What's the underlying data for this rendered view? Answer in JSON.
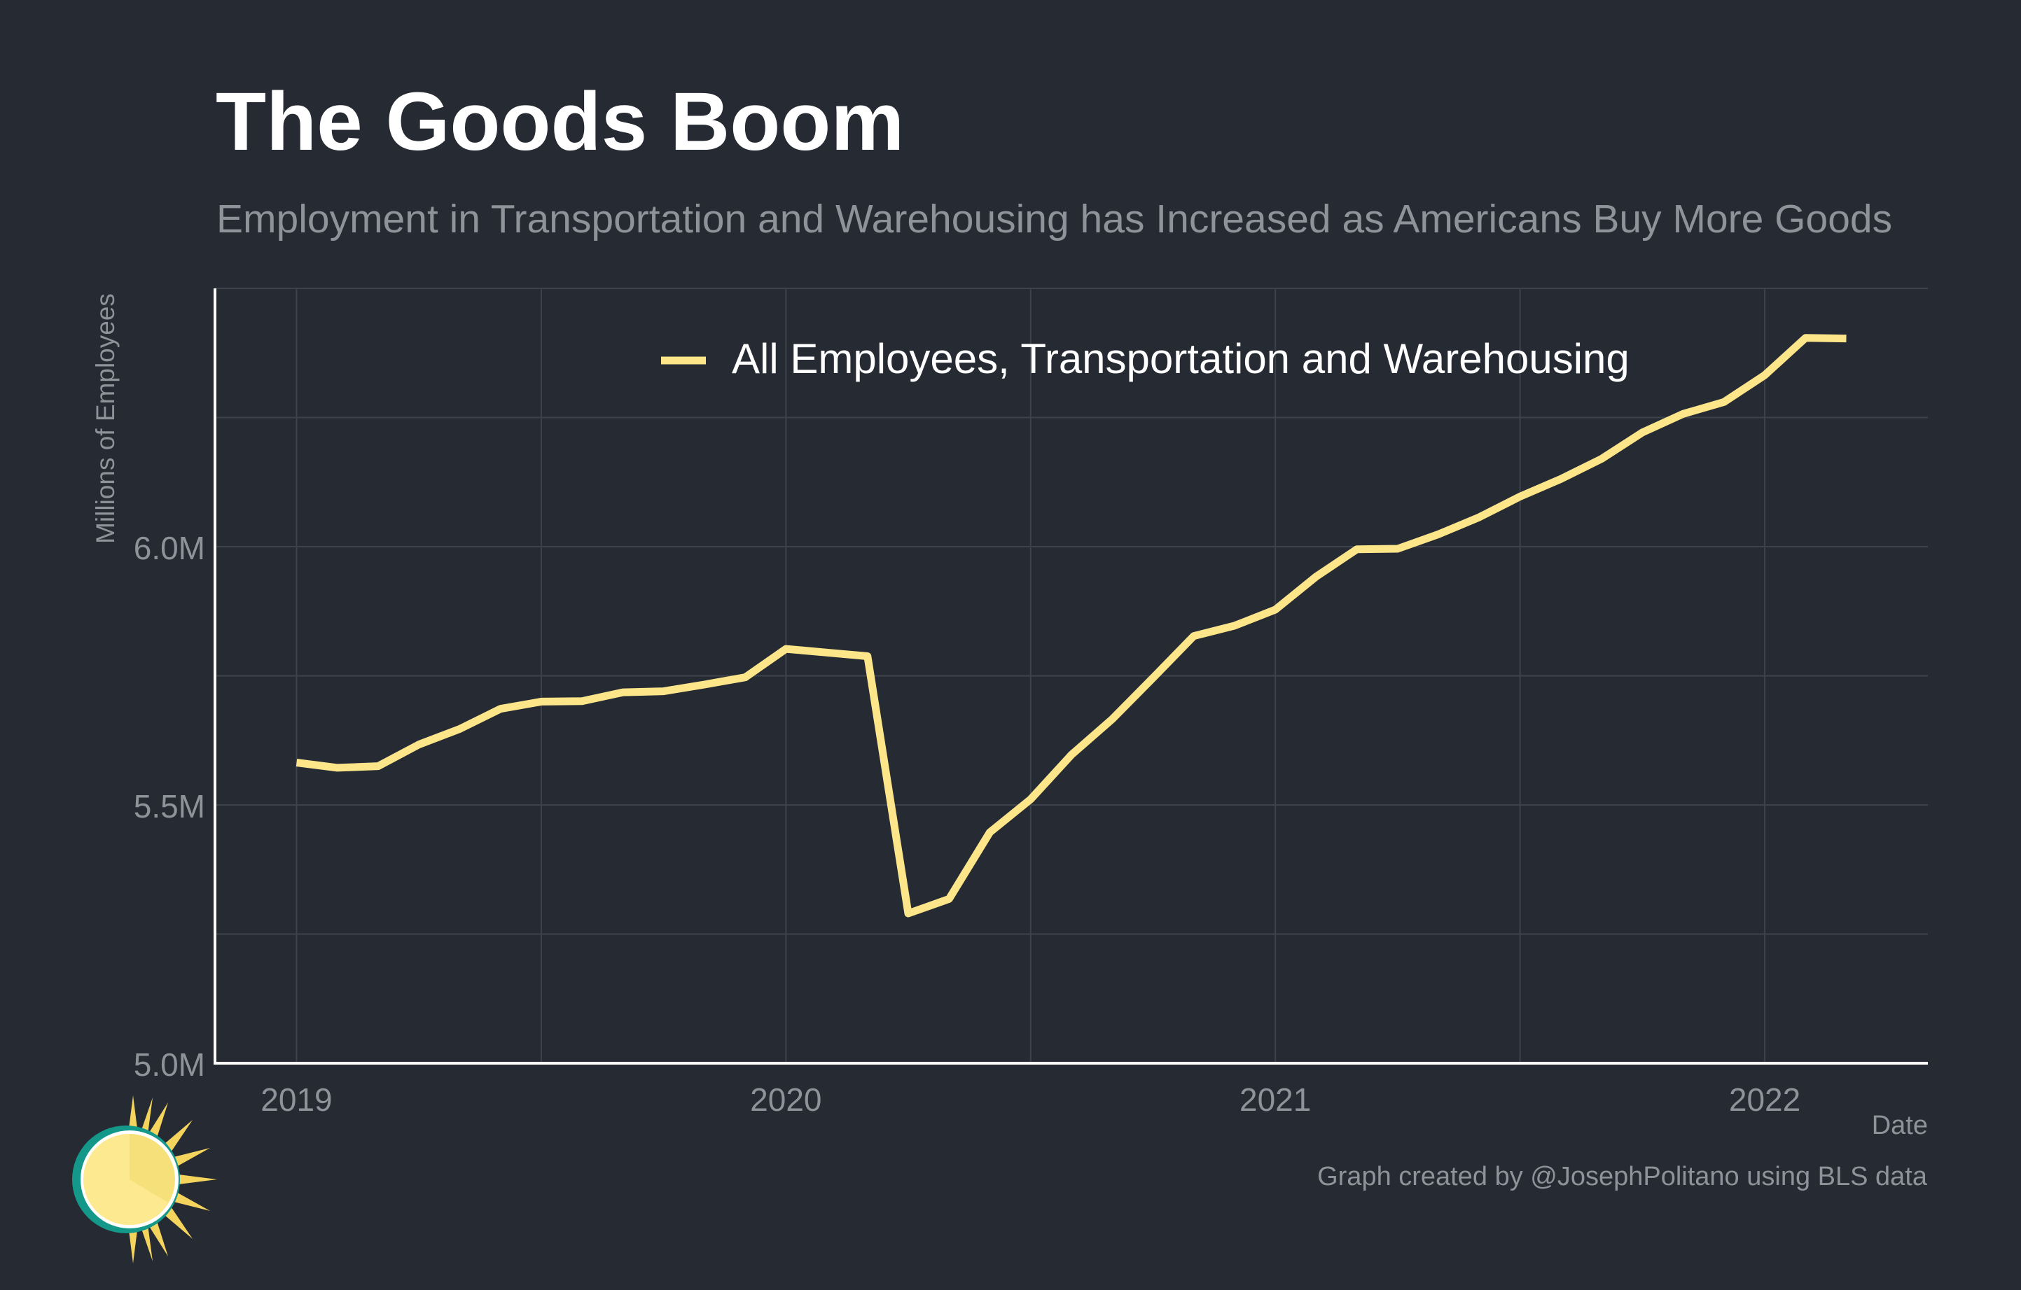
{
  "title": "The Goods Boom",
  "subtitle": "Employment in Transportation and Warehousing has Increased as Americans Buy More Goods",
  "credit": "Graph created by @JosephPolitano using BLS data",
  "logo_icon": "sun-logo-icon",
  "colors": {
    "background": "#252a33",
    "line": "#fde68a",
    "grid": "#3d424b",
    "axis": "#ffffff",
    "muted_text": "#8f9299"
  },
  "chart_data": {
    "type": "line",
    "title": "The Goods Boom",
    "subtitle": "Employment in Transportation and Warehousing has Increased as Americans Buy More Goods",
    "xlabel": "Date",
    "ylabel": "Millions of Employees",
    "x_ticks": [
      "2019",
      "2020",
      "2021",
      "2022"
    ],
    "y_ticks": [
      "5.0M",
      "5.5M",
      "6.0M"
    ],
    "y_tick_values": [
      5.0,
      5.5,
      6.0
    ],
    "ylim": [
      5.0,
      6.5
    ],
    "xlim": [
      "2018-11",
      "2022-05"
    ],
    "grid": true,
    "legend_position": "top-center",
    "x": [
      "2019-01",
      "2019-02",
      "2019-03",
      "2019-04",
      "2019-05",
      "2019-06",
      "2019-07",
      "2019-08",
      "2019-09",
      "2019-10",
      "2019-11",
      "2019-12",
      "2020-01",
      "2020-02",
      "2020-03",
      "2020-04",
      "2020-05",
      "2020-06",
      "2020-07",
      "2020-08",
      "2020-09",
      "2020-10",
      "2020-11",
      "2020-12",
      "2021-01",
      "2021-02",
      "2021-03",
      "2021-04",
      "2021-05",
      "2021-06",
      "2021-07",
      "2021-08",
      "2021-09",
      "2021-10",
      "2021-11",
      "2021-12",
      "2022-01",
      "2022-02",
      "2022-03"
    ],
    "series": [
      {
        "name": "All Employees, Transportation and Warehousing",
        "color": "#fde68a",
        "values": [
          5.582,
          5.572,
          5.575,
          5.617,
          5.647,
          5.686,
          5.7,
          5.701,
          5.718,
          5.72,
          5.733,
          5.747,
          5.802,
          5.795,
          5.788,
          5.29,
          5.318,
          5.447,
          5.511,
          5.597,
          5.666,
          5.746,
          5.827,
          5.847,
          5.878,
          5.942,
          5.995,
          5.996,
          6.024,
          6.057,
          6.097,
          6.131,
          6.17,
          6.221,
          6.257,
          6.28,
          6.332,
          6.404,
          6.403
        ]
      }
    ]
  }
}
